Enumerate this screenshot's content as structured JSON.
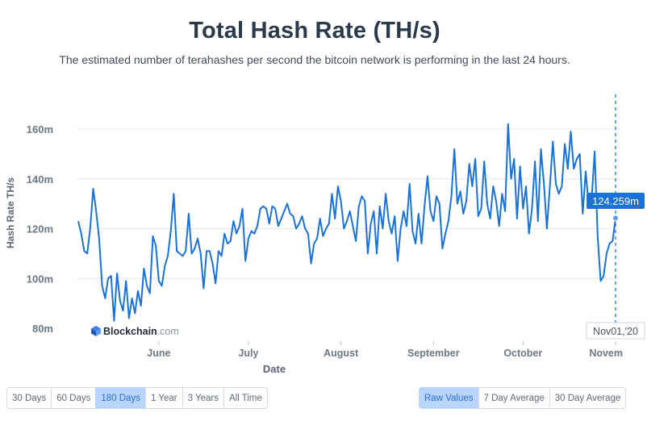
{
  "title": "Total Hash Rate (TH/s)",
  "subtitle": "The estimated number of terahashes per second the bitcoin network is performing in the last 24 hours.",
  "brand": {
    "name": "Blockchain",
    "suffix": ".com"
  },
  "range_buttons": [
    {
      "label": "30 Days",
      "active": false
    },
    {
      "label": "60 Days",
      "active": false
    },
    {
      "label": "180 Days",
      "active": true
    },
    {
      "label": "1 Year",
      "active": false
    },
    {
      "label": "3 Years",
      "active": false
    },
    {
      "label": "All Time",
      "active": false
    }
  ],
  "average_buttons": [
    {
      "label": "Raw Values",
      "active": true
    },
    {
      "label": "7 Day Average",
      "active": false
    },
    {
      "label": "30 Day Average",
      "active": false
    }
  ],
  "tooltip": {
    "value": "124.259m",
    "date": "Nov01,'20"
  },
  "colors": {
    "line": "#1a72d9",
    "tooltip_bg": "#1a72d9",
    "grid": "#e6e9ee",
    "active_button": "#b9d5fb"
  },
  "chart_data": {
    "type": "line",
    "title": "Total Hash Rate (TH/s)",
    "xlabel": "Date",
    "ylabel": "Hash Rate TH/s",
    "ylim": [
      80,
      160
    ],
    "y_ticks": [
      {
        "value": 80,
        "label": "80m"
      },
      {
        "value": 100,
        "label": "100m"
      },
      {
        "value": 120,
        "label": "120m"
      },
      {
        "value": 140,
        "label": "140m"
      },
      {
        "value": 160,
        "label": "160m"
      }
    ],
    "x_range": [
      "2020-05-05",
      "2020-11-01"
    ],
    "x_ticks": [
      {
        "date": "2020-06-01",
        "label": "June"
      },
      {
        "date": "2020-07-01",
        "label": "July"
      },
      {
        "date": "2020-08-01",
        "label": "August"
      },
      {
        "date": "2020-09-01",
        "label": "September"
      },
      {
        "date": "2020-10-01",
        "label": "October"
      },
      {
        "date": "2020-11-01",
        "label": "Novem"
      }
    ],
    "grid": true,
    "series": [
      {
        "values": [
          [
            "2020-05-05",
            123
          ],
          [
            "2020-05-06",
            118
          ],
          [
            "2020-05-07",
            111
          ],
          [
            "2020-05-08",
            110
          ],
          [
            "2020-05-09",
            120
          ],
          [
            "2020-05-10",
            136
          ],
          [
            "2020-05-11",
            127
          ],
          [
            "2020-05-12",
            116
          ],
          [
            "2020-05-13",
            97
          ],
          [
            "2020-05-14",
            92
          ],
          [
            "2020-05-15",
            100
          ],
          [
            "2020-05-16",
            101
          ],
          [
            "2020-05-17",
            83
          ],
          [
            "2020-05-18",
            102
          ],
          [
            "2020-05-19",
            91
          ],
          [
            "2020-05-20",
            87
          ],
          [
            "2020-05-21",
            99
          ],
          [
            "2020-05-22",
            84
          ],
          [
            "2020-05-23",
            92
          ],
          [
            "2020-05-24",
            86
          ],
          [
            "2020-05-25",
            95
          ],
          [
            "2020-05-26",
            89
          ],
          [
            "2020-05-27",
            104
          ],
          [
            "2020-05-28",
            97
          ],
          [
            "2020-05-29",
            94
          ],
          [
            "2020-05-30",
            117
          ],
          [
            "2020-05-31",
            113
          ],
          [
            "2020-06-01",
            99
          ],
          [
            "2020-06-02",
            97
          ],
          [
            "2020-06-03",
            105
          ],
          [
            "2020-06-04",
            109
          ],
          [
            "2020-06-05",
            119
          ],
          [
            "2020-06-06",
            134
          ],
          [
            "2020-06-07",
            111
          ],
          [
            "2020-06-08",
            110
          ],
          [
            "2020-06-09",
            109
          ],
          [
            "2020-06-10",
            111
          ],
          [
            "2020-06-11",
            126
          ],
          [
            "2020-06-12",
            110
          ],
          [
            "2020-06-13",
            112
          ],
          [
            "2020-06-14",
            116
          ],
          [
            "2020-06-15",
            110
          ],
          [
            "2020-06-16",
            96
          ],
          [
            "2020-06-17",
            111
          ],
          [
            "2020-06-18",
            111
          ],
          [
            "2020-06-19",
            106
          ],
          [
            "2020-06-20",
            98
          ],
          [
            "2020-06-21",
            111
          ],
          [
            "2020-06-22",
            109
          ],
          [
            "2020-06-23",
            118
          ],
          [
            "2020-06-24",
            114
          ],
          [
            "2020-06-25",
            115
          ],
          [
            "2020-06-26",
            123
          ],
          [
            "2020-06-27",
            118
          ],
          [
            "2020-06-28",
            121
          ],
          [
            "2020-06-29",
            128
          ],
          [
            "2020-06-30",
            107
          ],
          [
            "2020-07-01",
            116
          ],
          [
            "2020-07-02",
            119
          ],
          [
            "2020-07-03",
            118
          ],
          [
            "2020-07-04",
            121
          ],
          [
            "2020-07-05",
            128
          ],
          [
            "2020-07-06",
            129
          ],
          [
            "2020-07-07",
            128
          ],
          [
            "2020-07-08",
            122
          ],
          [
            "2020-07-09",
            129
          ],
          [
            "2020-07-10",
            128
          ],
          [
            "2020-07-11",
            121
          ],
          [
            "2020-07-12",
            124
          ],
          [
            "2020-07-13",
            127
          ],
          [
            "2020-07-14",
            130
          ],
          [
            "2020-07-15",
            126
          ],
          [
            "2020-07-16",
            125
          ],
          [
            "2020-07-17",
            120
          ],
          [
            "2020-07-18",
            122
          ],
          [
            "2020-07-19",
            125
          ],
          [
            "2020-07-20",
            120
          ],
          [
            "2020-07-21",
            118
          ],
          [
            "2020-07-22",
            106
          ],
          [
            "2020-07-23",
            114
          ],
          [
            "2020-07-24",
            116
          ],
          [
            "2020-07-25",
            124
          ],
          [
            "2020-07-26",
            117
          ],
          [
            "2020-07-27",
            120
          ],
          [
            "2020-07-28",
            122
          ],
          [
            "2020-07-29",
            134
          ],
          [
            "2020-07-30",
            124
          ],
          [
            "2020-07-31",
            137
          ],
          [
            "2020-08-01",
            131
          ],
          [
            "2020-08-02",
            120
          ],
          [
            "2020-08-03",
            123
          ],
          [
            "2020-08-04",
            127
          ],
          [
            "2020-08-05",
            121
          ],
          [
            "2020-08-06",
            115
          ],
          [
            "2020-08-07",
            129
          ],
          [
            "2020-08-08",
            133
          ],
          [
            "2020-08-09",
            131
          ],
          [
            "2020-08-10",
            110
          ],
          [
            "2020-08-11",
            122
          ],
          [
            "2020-08-12",
            127
          ],
          [
            "2020-08-13",
            110
          ],
          [
            "2020-08-14",
            129
          ],
          [
            "2020-08-15",
            120
          ],
          [
            "2020-08-16",
            134
          ],
          [
            "2020-08-17",
            123
          ],
          [
            "2020-08-18",
            118
          ],
          [
            "2020-08-19",
            125
          ],
          [
            "2020-08-20",
            107
          ],
          [
            "2020-08-21",
            120
          ],
          [
            "2020-08-22",
            127
          ],
          [
            "2020-08-23",
            121
          ],
          [
            "2020-08-24",
            138
          ],
          [
            "2020-08-25",
            119
          ],
          [
            "2020-08-26",
            114
          ],
          [
            "2020-08-27",
            126
          ],
          [
            "2020-08-28",
            114
          ],
          [
            "2020-08-29",
            129
          ],
          [
            "2020-08-30",
            141
          ],
          [
            "2020-08-31",
            127
          ],
          [
            "2020-09-01",
            123
          ],
          [
            "2020-09-02",
            133
          ],
          [
            "2020-09-03",
            130
          ],
          [
            "2020-09-04",
            112
          ],
          [
            "2020-09-05",
            118
          ],
          [
            "2020-09-06",
            123
          ],
          [
            "2020-09-07",
            133
          ],
          [
            "2020-09-08",
            152
          ],
          [
            "2020-09-09",
            130
          ],
          [
            "2020-09-10",
            135
          ],
          [
            "2020-09-11",
            126
          ],
          [
            "2020-09-12",
            131
          ],
          [
            "2020-09-13",
            146
          ],
          [
            "2020-09-14",
            137
          ],
          [
            "2020-09-15",
            148
          ],
          [
            "2020-09-16",
            125
          ],
          [
            "2020-09-17",
            128
          ],
          [
            "2020-09-18",
            147
          ],
          [
            "2020-09-19",
            130
          ],
          [
            "2020-09-20",
            124
          ],
          [
            "2020-09-21",
            137
          ],
          [
            "2020-09-22",
            131
          ],
          [
            "2020-09-23",
            121
          ],
          [
            "2020-09-24",
            134
          ],
          [
            "2020-09-25",
            127
          ],
          [
            "2020-09-26",
            162
          ],
          [
            "2020-09-27",
            140
          ],
          [
            "2020-09-28",
            148
          ],
          [
            "2020-09-29",
            124
          ],
          [
            "2020-09-30",
            145
          ],
          [
            "2020-10-01",
            128
          ],
          [
            "2020-10-02",
            137
          ],
          [
            "2020-10-03",
            118
          ],
          [
            "2020-10-04",
            128
          ],
          [
            "2020-10-05",
            147
          ],
          [
            "2020-10-06",
            123
          ],
          [
            "2020-10-07",
            152
          ],
          [
            "2020-10-08",
            138
          ],
          [
            "2020-10-09",
            120
          ],
          [
            "2020-10-10",
            137
          ],
          [
            "2020-10-11",
            155
          ],
          [
            "2020-10-12",
            138
          ],
          [
            "2020-10-13",
            134
          ],
          [
            "2020-10-14",
            137
          ],
          [
            "2020-10-15",
            154
          ],
          [
            "2020-10-16",
            144
          ],
          [
            "2020-10-17",
            159
          ],
          [
            "2020-10-18",
            144
          ],
          [
            "2020-10-19",
            148
          ],
          [
            "2020-10-20",
            150
          ],
          [
            "2020-10-21",
            126
          ],
          [
            "2020-10-22",
            143
          ],
          [
            "2020-10-23",
            129
          ],
          [
            "2020-10-24",
            132
          ],
          [
            "2020-10-25",
            151
          ],
          [
            "2020-10-26",
            117
          ],
          [
            "2020-10-27",
            99
          ],
          [
            "2020-10-28",
            101
          ],
          [
            "2020-10-29",
            110
          ],
          [
            "2020-10-30",
            114
          ],
          [
            "2020-10-31",
            115
          ],
          [
            "2020-11-01",
            124.259
          ]
        ]
      }
    ]
  }
}
